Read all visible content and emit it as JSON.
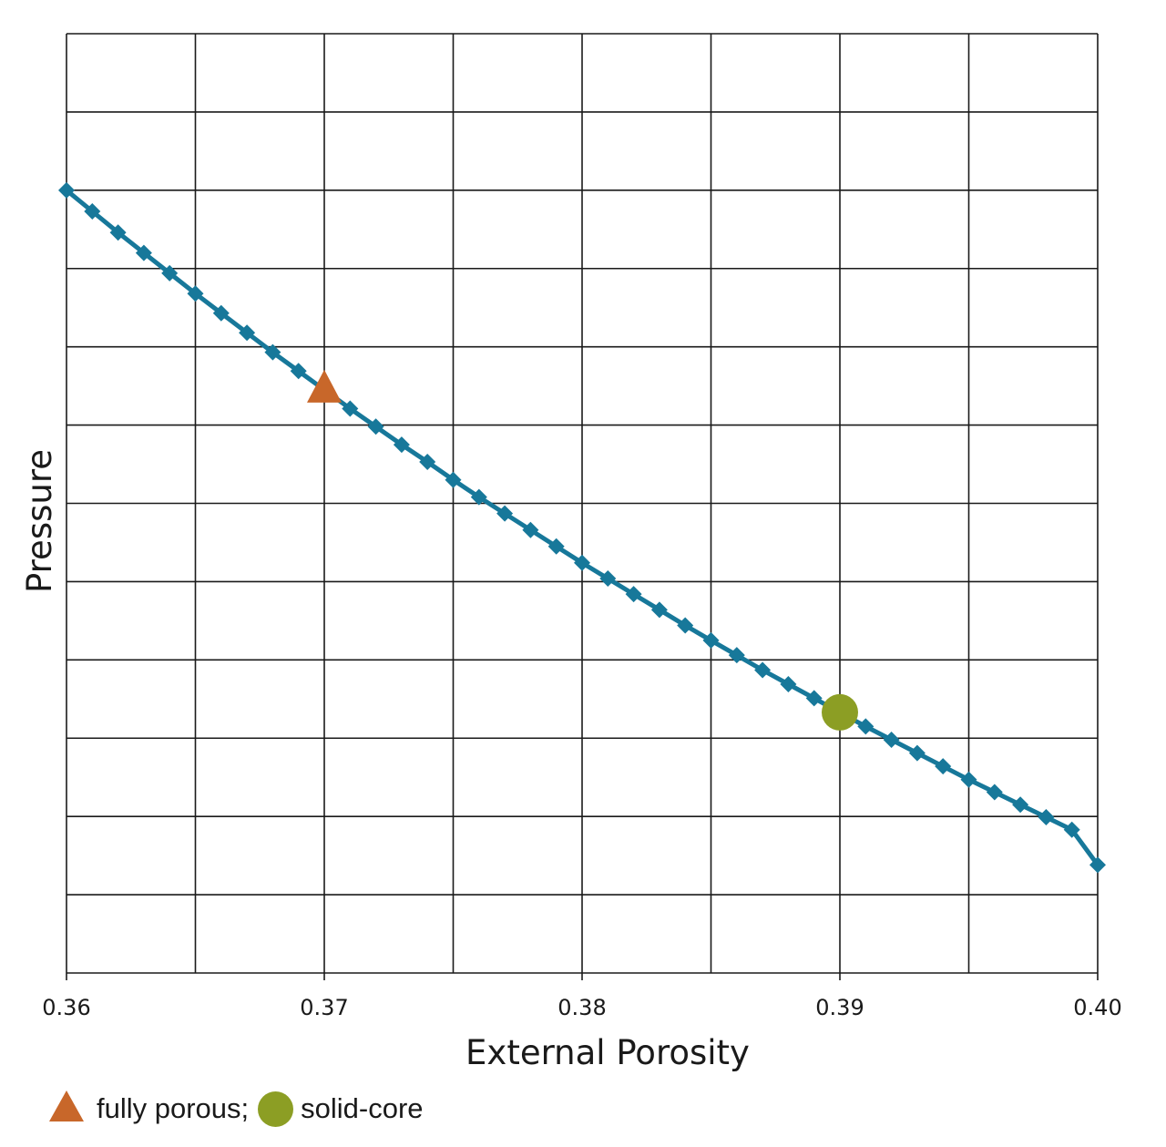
{
  "chart_data": {
    "type": "line",
    "title": "",
    "xlabel": "External Porosity",
    "ylabel": "Pressure",
    "xlim": [
      0.36,
      0.4
    ],
    "ylim": [
      0,
      12
    ],
    "x_ticks": [
      "0.36",
      "0.37",
      "0.38",
      "0.39",
      "0.40"
    ],
    "y_tick_labels_shown": false,
    "grid": true,
    "x": [
      0.36,
      0.361,
      0.362,
      0.363,
      0.364,
      0.365,
      0.366,
      0.367,
      0.368,
      0.369,
      0.37,
      0.371,
      0.372,
      0.373,
      0.374,
      0.375,
      0.376,
      0.377,
      0.378,
      0.379,
      0.38,
      0.381,
      0.382,
      0.383,
      0.384,
      0.385,
      0.386,
      0.387,
      0.388,
      0.389,
      0.39,
      0.391,
      0.392,
      0.393,
      0.394,
      0.395,
      0.396,
      0.397,
      0.398,
      0.399,
      0.4
    ],
    "series": [
      {
        "marker": "diamond",
        "color": "#17789a",
        "values": [
          10.0,
          9.73,
          9.46,
          9.2,
          8.94,
          8.68,
          8.43,
          8.18,
          7.93,
          7.69,
          7.45,
          7.21,
          6.98,
          6.75,
          6.53,
          6.3,
          6.08,
          5.87,
          5.66,
          5.45,
          5.24,
          5.04,
          4.84,
          4.64,
          4.44,
          4.25,
          4.06,
          3.87,
          3.69,
          3.51,
          3.33,
          3.15,
          2.98,
          2.81,
          2.64,
          2.47,
          2.31,
          2.15,
          1.99,
          1.83,
          1.38
        ]
      }
    ],
    "points": [
      {
        "label": "fully porous",
        "marker": "triangle",
        "color": "#c8672a",
        "x": 0.37,
        "y": 7.45
      },
      {
        "label": "solid-core",
        "marker": "circle",
        "color": "#8c9e24",
        "x": 0.39,
        "y": 3.33
      }
    ],
    "legend": {
      "position": "bottom-left",
      "items": [
        {
          "label": "fully porous;",
          "marker": "triangle",
          "color": "#c8672a"
        },
        {
          "label": "solid-core",
          "marker": "circle",
          "color": "#8c9e24"
        }
      ]
    }
  }
}
